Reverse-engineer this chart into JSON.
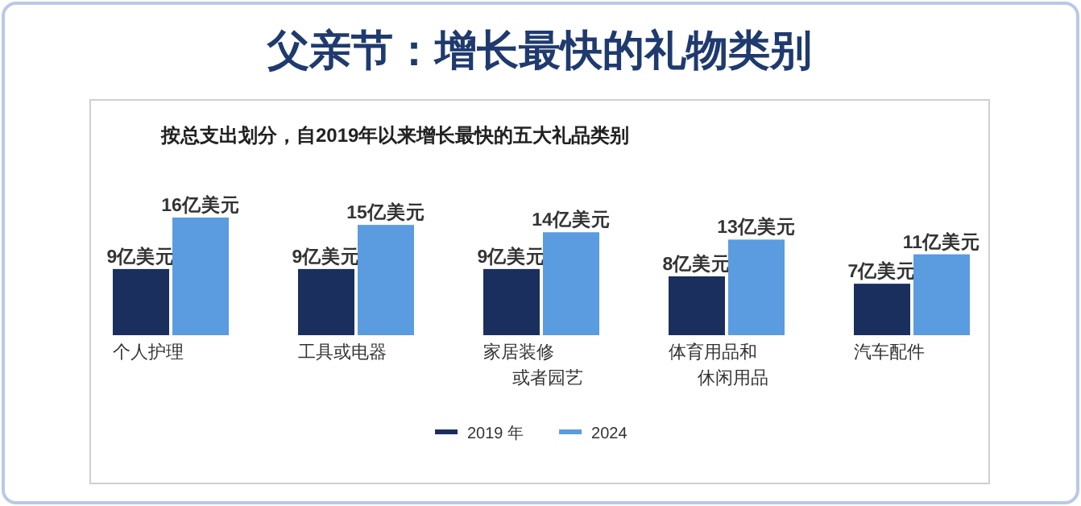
{
  "chart_data": {
    "type": "bar",
    "title": "父亲节：增长最快的礼物类别",
    "subtitle": "按总支出划分，自2019年以来增长最快的五大礼品类别",
    "categories": [
      "个人护理",
      "工具或电器",
      "家居装修或者园艺",
      "体育用品和休闲用品",
      "汽车配件"
    ],
    "series": [
      {
        "name": "2019 年",
        "color": "#1b2f5e",
        "values": [
          9,
          9,
          9,
          8,
          7
        ],
        "value_labels": [
          "9亿美元",
          "9亿美元",
          "9亿美元",
          "8亿美元",
          "7亿美元"
        ]
      },
      {
        "name": "2024",
        "color": "#5b9be0",
        "values": [
          16,
          15,
          14,
          13,
          11
        ],
        "value_labels": [
          "16亿美元",
          "15亿美元",
          "14亿美元",
          "13亿美元",
          "11亿美元"
        ]
      }
    ],
    "legend": "bottom",
    "grid": false
  }
}
